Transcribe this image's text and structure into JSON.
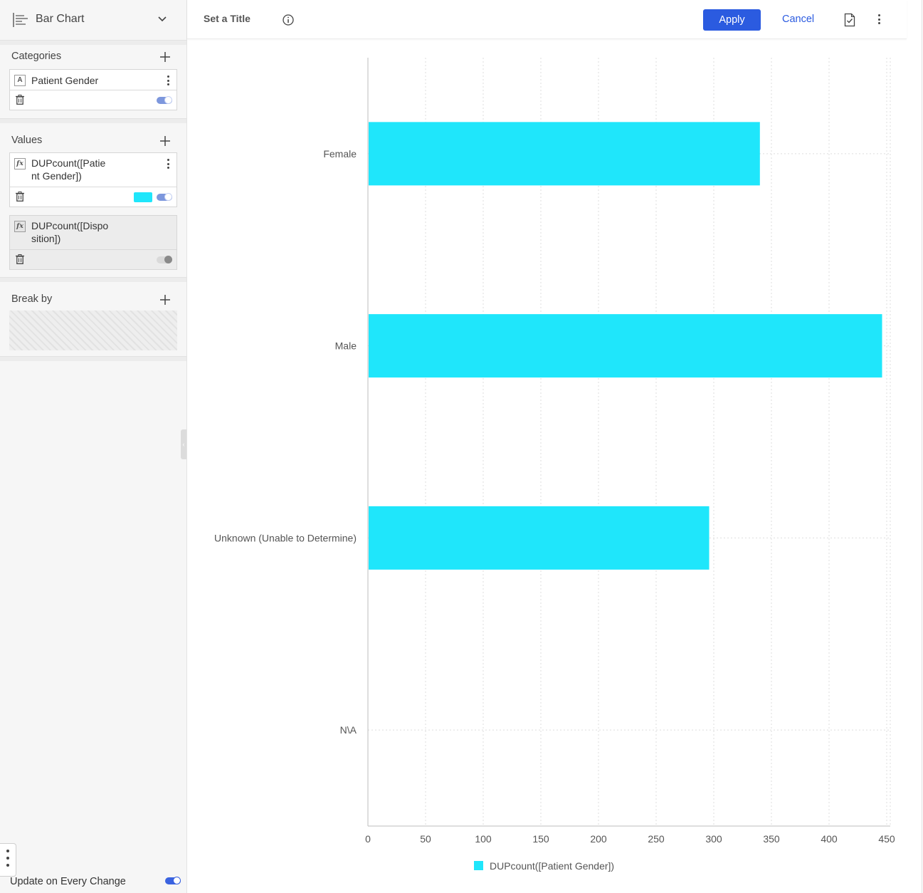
{
  "sidebar": {
    "chart_type_label": "Bar Chart",
    "categories": {
      "title": "Categories",
      "fields": [
        {
          "badge": "A",
          "name": "Patient Gender",
          "enabled": true
        }
      ]
    },
    "values": {
      "title": "Values",
      "fields": [
        {
          "badge": "fx",
          "name_line1": "DUPcount([Patie",
          "name_line2": "nt Gender])",
          "color": "#1fe6fb",
          "enabled": true
        },
        {
          "badge": "fx",
          "name_line1": "DUPcount([Dispo",
          "name_line2": "sition])",
          "enabled": false
        }
      ]
    },
    "break_by": {
      "title": "Break by"
    },
    "update_label": "Update on Every Change",
    "update_enabled": true
  },
  "toolbar": {
    "title": "Set a Title",
    "apply_label": "Apply",
    "cancel_label": "Cancel"
  },
  "colors": {
    "accent": "#2b5be0",
    "bar": "#1fe6fb"
  },
  "chart_data": {
    "type": "bar",
    "orientation": "horizontal",
    "categories": [
      "Female",
      "Male",
      "Unknown (Unable to Determine)",
      "N\\A"
    ],
    "series": [
      {
        "name": "DUPcount([Patient Gender])",
        "values": [
          340,
          446,
          296,
          0
        ],
        "color": "#1fe6fb"
      }
    ],
    "xticks": [
      0,
      50,
      100,
      150,
      200,
      250,
      300,
      350,
      400,
      450
    ],
    "xlim": [
      0,
      450
    ],
    "grid": true,
    "legend_position": "bottom"
  }
}
